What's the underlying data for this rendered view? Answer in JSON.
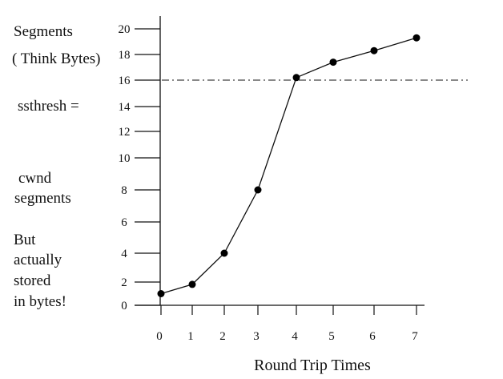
{
  "annotations": {
    "segments": "Segments",
    "think_bytes": "( Think Bytes)",
    "ssthresh": "ssthresh =",
    "cwnd": "cwnd",
    "cwnd_segments": "segments",
    "but": "But",
    "actually": "actually",
    "stored": "stored",
    "in_bytes": "in bytes!"
  },
  "chart_data": {
    "type": "line",
    "title": "",
    "xlabel": "Round  Trip  Times",
    "ylabel": "",
    "x_ticks": [
      0,
      1,
      2,
      3,
      4,
      5,
      6,
      7
    ],
    "y_ticks": [
      0,
      2,
      4,
      6,
      8,
      10,
      12,
      14,
      16,
      18,
      20
    ],
    "y_tick_labels": [
      "0",
      "2",
      "4",
      "6",
      "8",
      "10",
      "12",
      "14",
      "16",
      "18",
      "20"
    ],
    "series": [
      {
        "name": "",
        "marker": "filled-circle",
        "points": [
          {
            "x": 0,
            "y": 1
          },
          {
            "x": 1,
            "y": 1.8
          },
          {
            "x": 2,
            "y": 4
          },
          {
            "x": 3,
            "y": 8
          },
          {
            "x": 4,
            "y": 16.2
          },
          {
            "x": 5,
            "y": 17.4
          },
          {
            "x": 6,
            "y": 18.3
          },
          {
            "x": 7,
            "y": 19.3
          }
        ]
      }
    ],
    "threshold": {
      "y": 16,
      "style": "dash-dot"
    },
    "grid": false,
    "colors": {
      "line": "#111111",
      "marker": "#000000",
      "axis": "#111111"
    }
  }
}
